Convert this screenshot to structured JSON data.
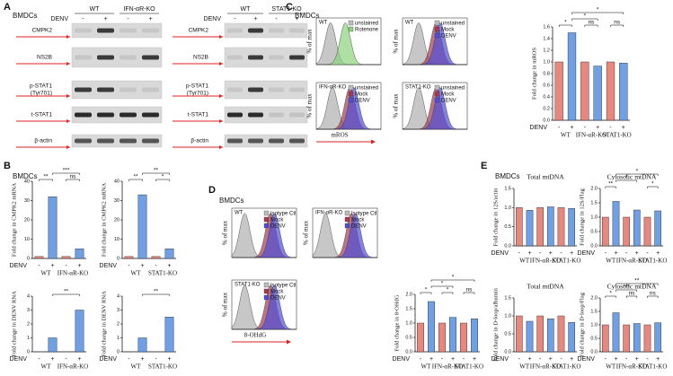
{
  "panel_labels": [
    "A",
    "B",
    "C",
    "D",
    "E"
  ],
  "cell_label": "BMDCs",
  "blots": [
    {
      "groups": [
        "WT",
        "IFN-αR-KO"
      ],
      "treatment": "DENV",
      "signs": [
        "-",
        "+",
        "-",
        "+"
      ],
      "proteins": [
        "CMPK2",
        "NS2B",
        "p-STAT1",
        "t-STAT1",
        "β-actin"
      ],
      "site": "(Tyr701)"
    },
    {
      "groups": [
        "WT",
        "STAT1-KO"
      ],
      "treatment": "DENV",
      "signs": [
        "-",
        "+",
        "-",
        "+"
      ],
      "proteins": [
        "CMPK2",
        "NS2B",
        "p-STAT1",
        "t-STAT1",
        "β-actin"
      ],
      "site": "(Tyr701)"
    }
  ],
  "flow": {
    "ylabel": "% of max",
    "c_xlabel": "mROS",
    "d_xlabel": "8-OHdG",
    "c": [
      {
        "title": "WT",
        "legend": [
          "unstained",
          "Rotenone"
        ]
      },
      {
        "title": "WT",
        "legend": [
          "unstained",
          "Mock",
          "DENV"
        ]
      },
      {
        "title": "IFN-αR-KO",
        "legend": [
          "unstained",
          "Mock",
          "DENV"
        ]
      },
      {
        "title": "STAT1-KO",
        "legend": [
          "unstained",
          "Mock",
          "DENV"
        ]
      }
    ],
    "d": [
      {
        "title": "WT",
        "legend": [
          "Isotype Ctl",
          "Mock",
          "DENV"
        ]
      },
      {
        "title": "IFN-αR-KO",
        "legend": [
          "Isotype Ctl",
          "Mock",
          "DENV"
        ]
      },
      {
        "title": "STAT1-KO",
        "legend": [
          "Isotype Ctl",
          "Mock",
          "DENV"
        ]
      }
    ]
  },
  "chart_data": [
    {
      "type": "bar",
      "ylabel": "Fold change in CMPK2 mRNA",
      "treatment": "DENV",
      "signs": [
        "-",
        "+",
        "-",
        "+"
      ],
      "groups": [
        "WT",
        "IFN-αR-KO"
      ],
      "values": [
        1,
        32,
        1,
        5
      ],
      "bar_colors": [
        "#e8877e",
        "#6f9fe4"
      ],
      "ylim": [
        0,
        40
      ],
      "yticks": [
        0,
        10,
        20,
        30,
        40
      ],
      "significance": [
        "**",
        "***",
        "ns"
      ]
    },
    {
      "type": "bar",
      "ylabel": "Fold change in CMPK2 mRNA",
      "treatment": "DENV",
      "signs": [
        "-",
        "+",
        "-",
        "+"
      ],
      "groups": [
        "WT",
        "STAT1-KO"
      ],
      "values": [
        1,
        33,
        1,
        5
      ],
      "bar_colors": [
        "#e8877e",
        "#6f9fe4"
      ],
      "ylim": [
        0,
        40
      ],
      "yticks": [
        0,
        10,
        20,
        30,
        40
      ],
      "significance": [
        "**",
        "**",
        "*"
      ]
    },
    {
      "type": "bar",
      "ylabel": "Fold change in DENV RNA",
      "treatment": "DENV",
      "signs": [
        "-",
        "+",
        "-",
        "+"
      ],
      "groups": [
        "WT",
        "IFN-αR-KO"
      ],
      "values": [
        0,
        1,
        0,
        3
      ],
      "bar_colors": [
        "#e8877e",
        "#6f9fe4"
      ],
      "ylim": [
        0,
        4
      ],
      "yticks": [
        0,
        1,
        2,
        3,
        4
      ],
      "significance": [
        "**"
      ]
    },
    {
      "type": "bar",
      "ylabel": "Fold change in DENV RNA",
      "treatment": "DENV",
      "signs": [
        "-",
        "+",
        "-",
        "+"
      ],
      "groups": [
        "WT",
        "STAT1-KO"
      ],
      "values": [
        0,
        1,
        0,
        2.5
      ],
      "bar_colors": [
        "#e8877e",
        "#6f9fe4"
      ],
      "ylim": [
        0,
        4
      ],
      "yticks": [
        0,
        1,
        2,
        3,
        4
      ],
      "significance": [
        "**"
      ]
    },
    {
      "type": "bar",
      "ylabel": "Fold change in mROS",
      "treatment": "DENV",
      "signs": [
        "-",
        "+",
        "-",
        "+",
        "-",
        "+"
      ],
      "groups": [
        "WT",
        "IFN-αR-KO",
        "STAT1-KO"
      ],
      "values": [
        1,
        1.5,
        1,
        0.93,
        1,
        0.98
      ],
      "bar_colors": [
        "#e8877e",
        "#6f9fe4"
      ],
      "ylim": [
        0,
        1.6
      ],
      "yticks": [
        {
          "value": 0,
          "label": "0.0"
        },
        {
          "value": 0.2,
          "label": "0.2"
        },
        {
          "value": 0.4,
          "label": "0.4"
        },
        {
          "value": 0.6,
          "label": "0.6"
        },
        {
          "value": 0.8,
          "label": "0.8"
        },
        {
          "value": 1,
          "label": "1.0"
        },
        {
          "value": 1.2,
          "label": "1.2"
        },
        {
          "value": 1.4,
          "label": "1.4"
        },
        {
          "value": 1.6,
          "label": "1.6"
        }
      ],
      "significance": [
        "*",
        "*",
        "*",
        "ns",
        "ns"
      ]
    },
    {
      "type": "bar",
      "ylabel": "Fold change in 8-OHdG",
      "treatment": "DENV",
      "signs": [
        "-",
        "+",
        "-",
        "+",
        "-",
        "+"
      ],
      "groups": [
        "WT",
        "IFN-αR-KO",
        "STAT1-KO"
      ],
      "values": [
        1,
        1.75,
        1,
        1.2,
        1,
        1.15
      ],
      "bar_colors": [
        "#e8877e",
        "#6f9fe4"
      ],
      "ylim": [
        0,
        2
      ],
      "yticks": [
        {
          "value": 0,
          "label": "0.0"
        },
        {
          "value": 0.5,
          "label": "0.5"
        },
        {
          "value": 1,
          "label": "1.0"
        },
        {
          "value": 1.5,
          "label": "1.5"
        },
        {
          "value": 2,
          "label": "2.0"
        }
      ],
      "significance": [
        "*",
        "*",
        "*",
        "*",
        "ns"
      ]
    },
    {
      "type": "bar",
      "title": "Total mtDNA",
      "ylabel": "Fold change in 12S/actin",
      "treatment": "DENV",
      "signs": [
        "-",
        "+",
        "-",
        "+",
        "-",
        "+"
      ],
      "groups": [
        "WT",
        "IFN-αR-KO",
        "STAT1-KO"
      ],
      "values": [
        1,
        0.93,
        1,
        1.02,
        1,
        0.98
      ],
      "bar_colors": [
        "#e8877e",
        "#6f9fe4"
      ],
      "ylim": [
        0,
        1.5
      ],
      "yticks": [
        {
          "value": 0,
          "label": "0.0"
        },
        {
          "value": 0.5,
          "label": "0.5"
        },
        {
          "value": 1,
          "label": "1.0"
        },
        {
          "value": 1.5,
          "label": "1.5"
        }
      ],
      "significance": []
    },
    {
      "type": "bar",
      "title": "Cytosolic mtDNA",
      "ylabel": "Fold change in 12S/Flag",
      "treatment": "DENV",
      "signs": [
        "-",
        "+",
        "-",
        "+",
        "-",
        "+"
      ],
      "groups": [
        "WT",
        "IFN-αR-KO",
        "STAT1-KO"
      ],
      "values": [
        1,
        1.55,
        1,
        1.25,
        1,
        1.22
      ],
      "bar_colors": [
        "#e8877e",
        "#6f9fe4"
      ],
      "ylim": [
        0,
        2
      ],
      "yticks": [
        {
          "value": 0,
          "label": "0.0"
        },
        {
          "value": 0.5,
          "label": "0.5"
        },
        {
          "value": 1,
          "label": "1.0"
        },
        {
          "value": 1.5,
          "label": "1.5"
        },
        {
          "value": 2,
          "label": "2.0"
        }
      ],
      "significance": [
        "**",
        "*",
        "*",
        "*"
      ]
    },
    {
      "type": "bar",
      "title": "Total mtDNA",
      "ylabel": "Fold change in D-loop/albumin",
      "treatment": "DENV",
      "signs": [
        "-",
        "+",
        "-",
        "+",
        "-",
        "+"
      ],
      "groups": [
        "WT",
        "IFN-αR-KO",
        "STAT1-KO"
      ],
      "values": [
        1,
        0.85,
        1,
        0.92,
        1,
        0.82
      ],
      "bar_colors": [
        "#e8877e",
        "#6f9fe4"
      ],
      "ylim": [
        0,
        1.5
      ],
      "yticks": [
        {
          "value": 0,
          "label": "0.0"
        },
        {
          "value": 0.5,
          "label": "0.5"
        },
        {
          "value": 1,
          "label": "1.0"
        },
        {
          "value": 1.5,
          "label": "1.5"
        }
      ],
      "significance": []
    },
    {
      "type": "bar",
      "title": "Cytosolic mtDNA",
      "ylabel": "Fold change in D-loop/Flag",
      "treatment": "DENV",
      "signs": [
        "-",
        "+",
        "-",
        "+",
        "-",
        "+"
      ],
      "groups": [
        "WT",
        "IFN-αR-KO",
        "STAT1-KO"
      ],
      "values": [
        1,
        1.45,
        1,
        1.05,
        1,
        1.08
      ],
      "bar_colors": [
        "#e8877e",
        "#6f9fe4"
      ],
      "ylim": [
        0,
        2
      ],
      "yticks": [
        {
          "value": 0,
          "label": "0.0"
        },
        {
          "value": 0.5,
          "label": "0.5"
        },
        {
          "value": 1,
          "label": "1.0"
        },
        {
          "value": 1.5,
          "label": "1.5"
        },
        {
          "value": 2,
          "label": "2.0"
        }
      ],
      "significance": [
        "*",
        "***",
        "**",
        "ns",
        "ns"
      ]
    }
  ]
}
